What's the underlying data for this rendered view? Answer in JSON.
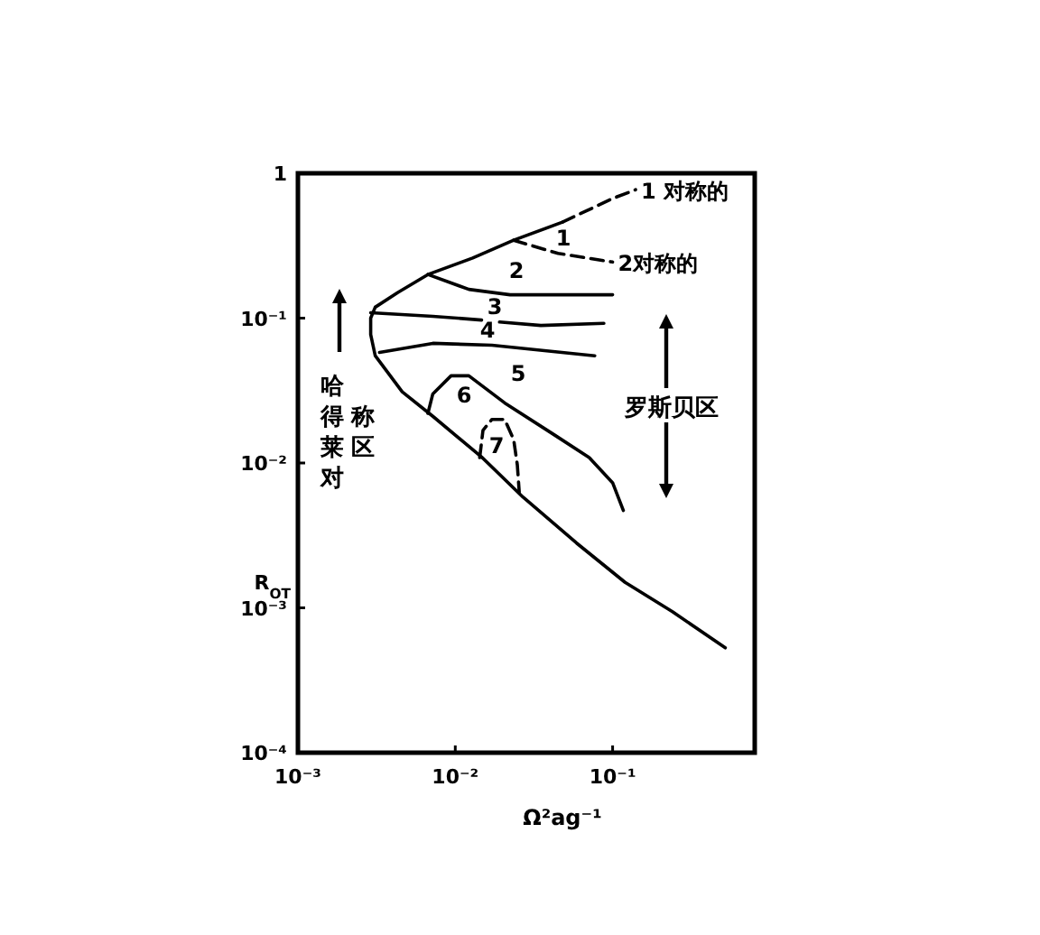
{
  "chart_data": {
    "type": "line",
    "xlabel": "Ω²ag⁻¹",
    "ylabel": "R$_{OT}$",
    "log": "xy",
    "grid": false,
    "marker": "none",
    "xlim": [
      0.001,
      0.8
    ],
    "ylim": [
      0.0001,
      1
    ],
    "xticks": [
      {
        "value": 0.001,
        "label": "10⁻³"
      },
      {
        "value": 0.01,
        "label": "10⁻²"
      },
      {
        "value": 0.1,
        "label": "10⁻¹"
      }
    ],
    "yticks": [
      {
        "value": 0.0001,
        "label": "10⁻⁴"
      },
      {
        "value": 0.001,
        "label": "10⁻³"
      },
      {
        "value": 0.01,
        "label": "10⁻²"
      },
      {
        "value": 0.1,
        "label": "10⁻¹"
      },
      1
    ],
    "series": [
      {
        "color": "#000000",
        "line_style": "solid",
        "x": [
          0.048,
          0.0235,
          0.0129,
          0.0067,
          0.0043,
          0.0031,
          0.0029,
          0.0029,
          0.0031,
          0.0046,
          0.0072,
          0.0147,
          0.027,
          0.059,
          0.12,
          0.24,
          0.52
        ],
        "values": [
          0.46,
          0.345,
          0.26,
          0.2,
          0.15,
          0.119,
          0.1,
          0.077,
          0.055,
          0.031,
          0.021,
          0.011,
          0.0058,
          0.0028,
          0.0015,
          0.00094,
          0.00053
        ]
      },
      {
        "color": "#000000",
        "line_style": "dashed",
        "x": [
          0.048,
          0.1,
          0.14
        ],
        "values": [
          0.46,
          0.67,
          0.77
        ]
      },
      {
        "color": "#000000",
        "line_style": "dashed",
        "x": [
          0.0235,
          0.045,
          0.1
        ],
        "values": [
          0.345,
          0.28,
          0.244
        ]
      },
      {
        "color": "#000000",
        "line_style": "solid",
        "x": [
          0.0067,
          0.0122,
          0.0223,
          0.1
        ],
        "values": [
          0.2,
          0.158,
          0.145,
          0.145
        ]
      },
      {
        "color": "#000000",
        "line_style": "solid",
        "x": [
          0.0029,
          0.0072,
          0.0147
        ],
        "values": [
          0.109,
          0.103,
          0.097
        ]
      },
      {
        "color": "#000000",
        "line_style": "solid",
        "x": [
          0.0191,
          0.035,
          0.088
        ],
        "values": [
          0.094,
          0.089,
          0.092
        ]
      },
      {
        "color": "#000000",
        "line_style": "solid",
        "x": [
          0.0033,
          0.0072,
          0.0171,
          0.077
        ],
        "values": [
          0.058,
          0.067,
          0.065,
          0.055
        ]
      },
      {
        "color": "#000000",
        "line_style": "solid",
        "x": [
          0.0067,
          0.0072,
          0.0094,
          0.0122,
          0.0206,
          0.042,
          0.071,
          0.1,
          0.117
        ],
        "values": [
          0.022,
          0.03,
          0.04,
          0.04,
          0.026,
          0.0158,
          0.0109,
          0.0073,
          0.0047
        ]
      },
      {
        "color": "#000000",
        "line_style": "dashed",
        "x": [
          0.0143,
          0.015,
          0.0171,
          0.0206,
          0.0235,
          0.0248,
          0.0255
        ],
        "values": [
          0.0109,
          0.0168,
          0.02,
          0.02,
          0.0145,
          0.0097,
          0.0063
        ]
      }
    ],
    "annotations": [
      {
        "text": "1 对称的",
        "x": 0.14,
        "y": 0.77
      },
      {
        "text": "2对称的",
        "x": 0.1,
        "y": 0.244
      },
      "1",
      "2",
      "3",
      "4",
      "5",
      "6",
      "7",
      "哈得莱对称区",
      "罗斯贝区"
    ]
  }
}
